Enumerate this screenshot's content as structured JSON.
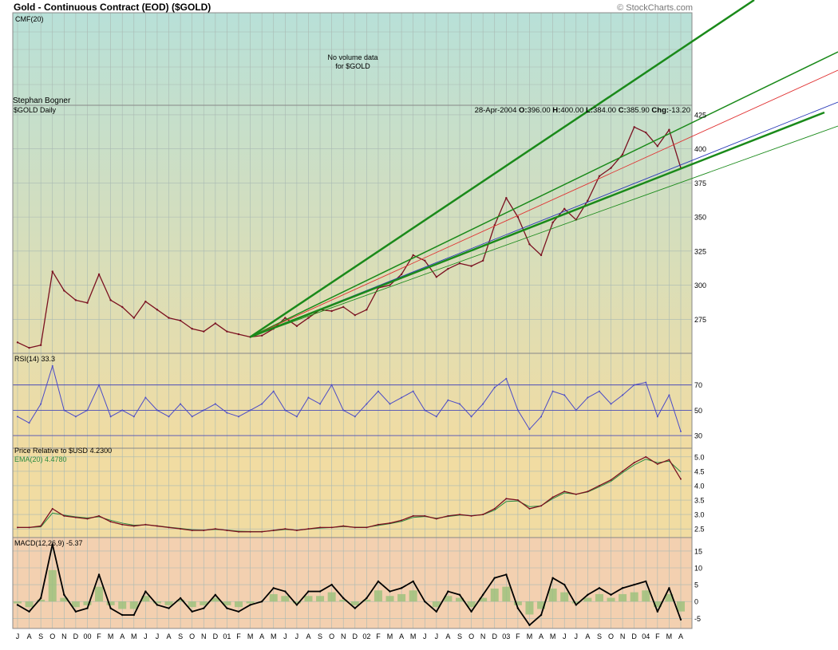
{
  "header": {
    "title": "Gold - Continuous Contract (EOD) ($GOLD)",
    "credit": "© StockCharts.com"
  },
  "cmf_panel": {
    "label": "CMF(20)",
    "note_line1": "No volume data",
    "note_line2": "for $GOLD"
  },
  "price_panel": {
    "author": "Stephan Bogner",
    "symbol": "$GOLD Daily",
    "quote": {
      "date": "28-Apr-2004",
      "o_label": "O:",
      "open": "396.00",
      "h_label": "H:",
      "high": "400.00",
      "l_label": "L:",
      "low": "384.00",
      "c_label": "C:",
      "close": "385.90",
      "chg_label": "Chg:",
      "change": "-13.20"
    },
    "yticks": [
      "425",
      "400",
      "375",
      "350",
      "325",
      "300",
      "275"
    ]
  },
  "rsi_panel": {
    "label": "RSI(14)",
    "value": "33.3",
    "yticks": [
      "70",
      "50",
      "30"
    ]
  },
  "relative_panel": {
    "label": "Price Relative to $USD",
    "value": "4.2300",
    "ema_label": "EMA(20)",
    "ema_value": "4.4780",
    "yticks": [
      "5.0",
      "4.5",
      "4.0",
      "3.5",
      "3.0",
      "2.5"
    ]
  },
  "macd_panel": {
    "label": "MACD(12,26,9)",
    "value": "-5.37",
    "yticks": [
      "15",
      "10",
      "5",
      "0",
      "-5"
    ]
  },
  "colors": {
    "panel_top": "#b8e0d8",
    "panel_bottom": "#f1dca2",
    "macd_bg": "#f3d0b0",
    "grid": "#a9b9b3",
    "price_bar": "#7a1020",
    "rsi_line": "#4a4ac8",
    "relative_line": "#7a1020",
    "ema_line": "#2a8a40",
    "macd_line": "#000000",
    "histogram": "#9ac07a",
    "trend_green": "#1a8a1a",
    "trend_red": "#e03030",
    "trend_blue": "#2a3ab8"
  },
  "x_axis": {
    "labels": [
      "J",
      "A",
      "S",
      "O",
      "N",
      "D",
      "00",
      "F",
      "M",
      "A",
      "M",
      "J",
      "J",
      "A",
      "S",
      "O",
      "N",
      "D",
      "01",
      "F",
      "M",
      "A",
      "M",
      "J",
      "J",
      "A",
      "S",
      "O",
      "N",
      "D",
      "02",
      "F",
      "M",
      "A",
      "M",
      "J",
      "J",
      "A",
      "S",
      "O",
      "N",
      "D",
      "03",
      "F",
      "M",
      "A",
      "M",
      "J",
      "J",
      "A",
      "S",
      "O",
      "N",
      "D",
      "04",
      "F",
      "M",
      "A"
    ]
  },
  "chart_data": [
    {
      "type": "line",
      "title": "Gold - Continuous Contract (EOD) ($GOLD)",
      "series": [
        {
          "name": "$GOLD Daily",
          "x": [
            "1999-07",
            "1999-08",
            "1999-09",
            "1999-10",
            "1999-11",
            "1999-12",
            "2000-01",
            "2000-02",
            "2000-03",
            "2000-04",
            "2000-05",
            "2000-06",
            "2000-07",
            "2000-08",
            "2000-09",
            "2000-10",
            "2000-11",
            "2000-12",
            "2001-01",
            "2001-02",
            "2001-03",
            "2001-04",
            "2001-05",
            "2001-06",
            "2001-07",
            "2001-08",
            "2001-09",
            "2001-10",
            "2001-11",
            "2001-12",
            "2002-01",
            "2002-02",
            "2002-03",
            "2002-04",
            "2002-05",
            "2002-06",
            "2002-07",
            "2002-08",
            "2002-09",
            "2002-10",
            "2002-11",
            "2002-12",
            "2003-01",
            "2003-02",
            "2003-03",
            "2003-04",
            "2003-05",
            "2003-06",
            "2003-07",
            "2003-08",
            "2003-09",
            "2003-10",
            "2003-11",
            "2003-12",
            "2004-01",
            "2004-02",
            "2004-03",
            "2004-04"
          ],
          "values": [
            258,
            254,
            256,
            310,
            296,
            289,
            287,
            308,
            289,
            284,
            276,
            288,
            282,
            276,
            274,
            268,
            266,
            272,
            266,
            264,
            262,
            263,
            268,
            276,
            270,
            276,
            282,
            281,
            284,
            278,
            282,
            298,
            300,
            308,
            322,
            318,
            306,
            312,
            316,
            314,
            318,
            344,
            364,
            350,
            330,
            322,
            346,
            356,
            348,
            362,
            380,
            386,
            396,
            416,
            412,
            402,
            414,
            386
          ],
          "open": "396.00",
          "high": "400.00",
          "low": "384.00",
          "close": "385.90",
          "change": "-13.20",
          "date": "28-Apr-2004"
        }
      ],
      "ylim": [
        250,
        432
      ],
      "yticks": [
        275,
        300,
        325,
        350,
        375,
        400,
        425
      ]
    },
    {
      "type": "line",
      "title": "RSI(14)",
      "series": [
        {
          "name": "RSI(14)",
          "values": [
            45,
            40,
            55,
            85,
            50,
            45,
            50,
            70,
            45,
            50,
            45,
            60,
            50,
            45,
            55,
            45,
            50,
            55,
            48,
            45,
            50,
            55,
            65,
            50,
            45,
            60,
            55,
            70,
            50,
            45,
            55,
            65,
            55,
            60,
            65,
            50,
            45,
            58,
            55,
            45,
            55,
            68,
            75,
            50,
            35,
            45,
            65,
            62,
            50,
            60,
            65,
            55,
            62,
            70,
            72,
            45,
            62,
            33.3
          ]
        }
      ],
      "ylim": [
        20,
        95
      ],
      "yticks": [
        30,
        50,
        70
      ],
      "last_value": 33.3
    },
    {
      "type": "line",
      "title": "Price Relative to $USD",
      "series": [
        {
          "name": "Price Relative to $USD",
          "values": [
            2.55,
            2.55,
            2.6,
            3.2,
            2.95,
            2.9,
            2.85,
            2.95,
            2.75,
            2.65,
            2.6,
            2.65,
            2.6,
            2.55,
            2.5,
            2.45,
            2.45,
            2.5,
            2.45,
            2.4,
            2.4,
            2.4,
            2.45,
            2.5,
            2.45,
            2.5,
            2.55,
            2.55,
            2.6,
            2.55,
            2.55,
            2.65,
            2.7,
            2.8,
            2.95,
            2.95,
            2.85,
            2.95,
            3.0,
            2.95,
            3.0,
            3.2,
            3.55,
            3.5,
            3.2,
            3.3,
            3.6,
            3.8,
            3.7,
            3.8,
            4.0,
            4.2,
            4.5,
            4.8,
            5.0,
            4.75,
            4.9,
            4.23
          ]
        },
        {
          "name": "EMA(20)",
          "values": [
            2.55,
            2.55,
            2.57,
            3.05,
            2.98,
            2.92,
            2.88,
            2.92,
            2.8,
            2.7,
            2.63,
            2.64,
            2.61,
            2.56,
            2.52,
            2.47,
            2.46,
            2.48,
            2.46,
            2.42,
            2.41,
            2.41,
            2.44,
            2.48,
            2.46,
            2.49,
            2.53,
            2.55,
            2.58,
            2.56,
            2.56,
            2.62,
            2.68,
            2.76,
            2.9,
            2.93,
            2.87,
            2.93,
            2.98,
            2.96,
            2.99,
            3.15,
            3.45,
            3.47,
            3.27,
            3.3,
            3.55,
            3.75,
            3.7,
            3.78,
            3.96,
            4.15,
            4.45,
            4.72,
            4.92,
            4.8,
            4.85,
            4.478
          ]
        }
      ],
      "ylim": [
        2.2,
        5.3
      ],
      "yticks": [
        2.5,
        3.0,
        3.5,
        4.0,
        4.5,
        5.0
      ]
    },
    {
      "type": "line",
      "title": "MACD(12,26,9)",
      "series": [
        {
          "name": "MACD(12,26,9)",
          "values": [
            -1,
            -3,
            1,
            17,
            2,
            -3,
            -2,
            8,
            -2,
            -4,
            -4,
            3,
            -1,
            -2,
            1,
            -3,
            -2,
            2,
            -2,
            -3,
            -1,
            0,
            4,
            3,
            -1,
            3,
            3,
            5,
            1,
            -2,
            1,
            6,
            3,
            4,
            6,
            0,
            -3,
            3,
            2,
            -3,
            2,
            7,
            8,
            -2,
            -7,
            -4,
            7,
            5,
            -1,
            2,
            4,
            2,
            4,
            5,
            6,
            -3,
            4,
            -5.37
          ]
        }
      ],
      "ylim": [
        -8,
        19
      ],
      "yticks": [
        -5,
        0,
        5,
        10,
        15
      ],
      "last_value": -5.37
    }
  ]
}
